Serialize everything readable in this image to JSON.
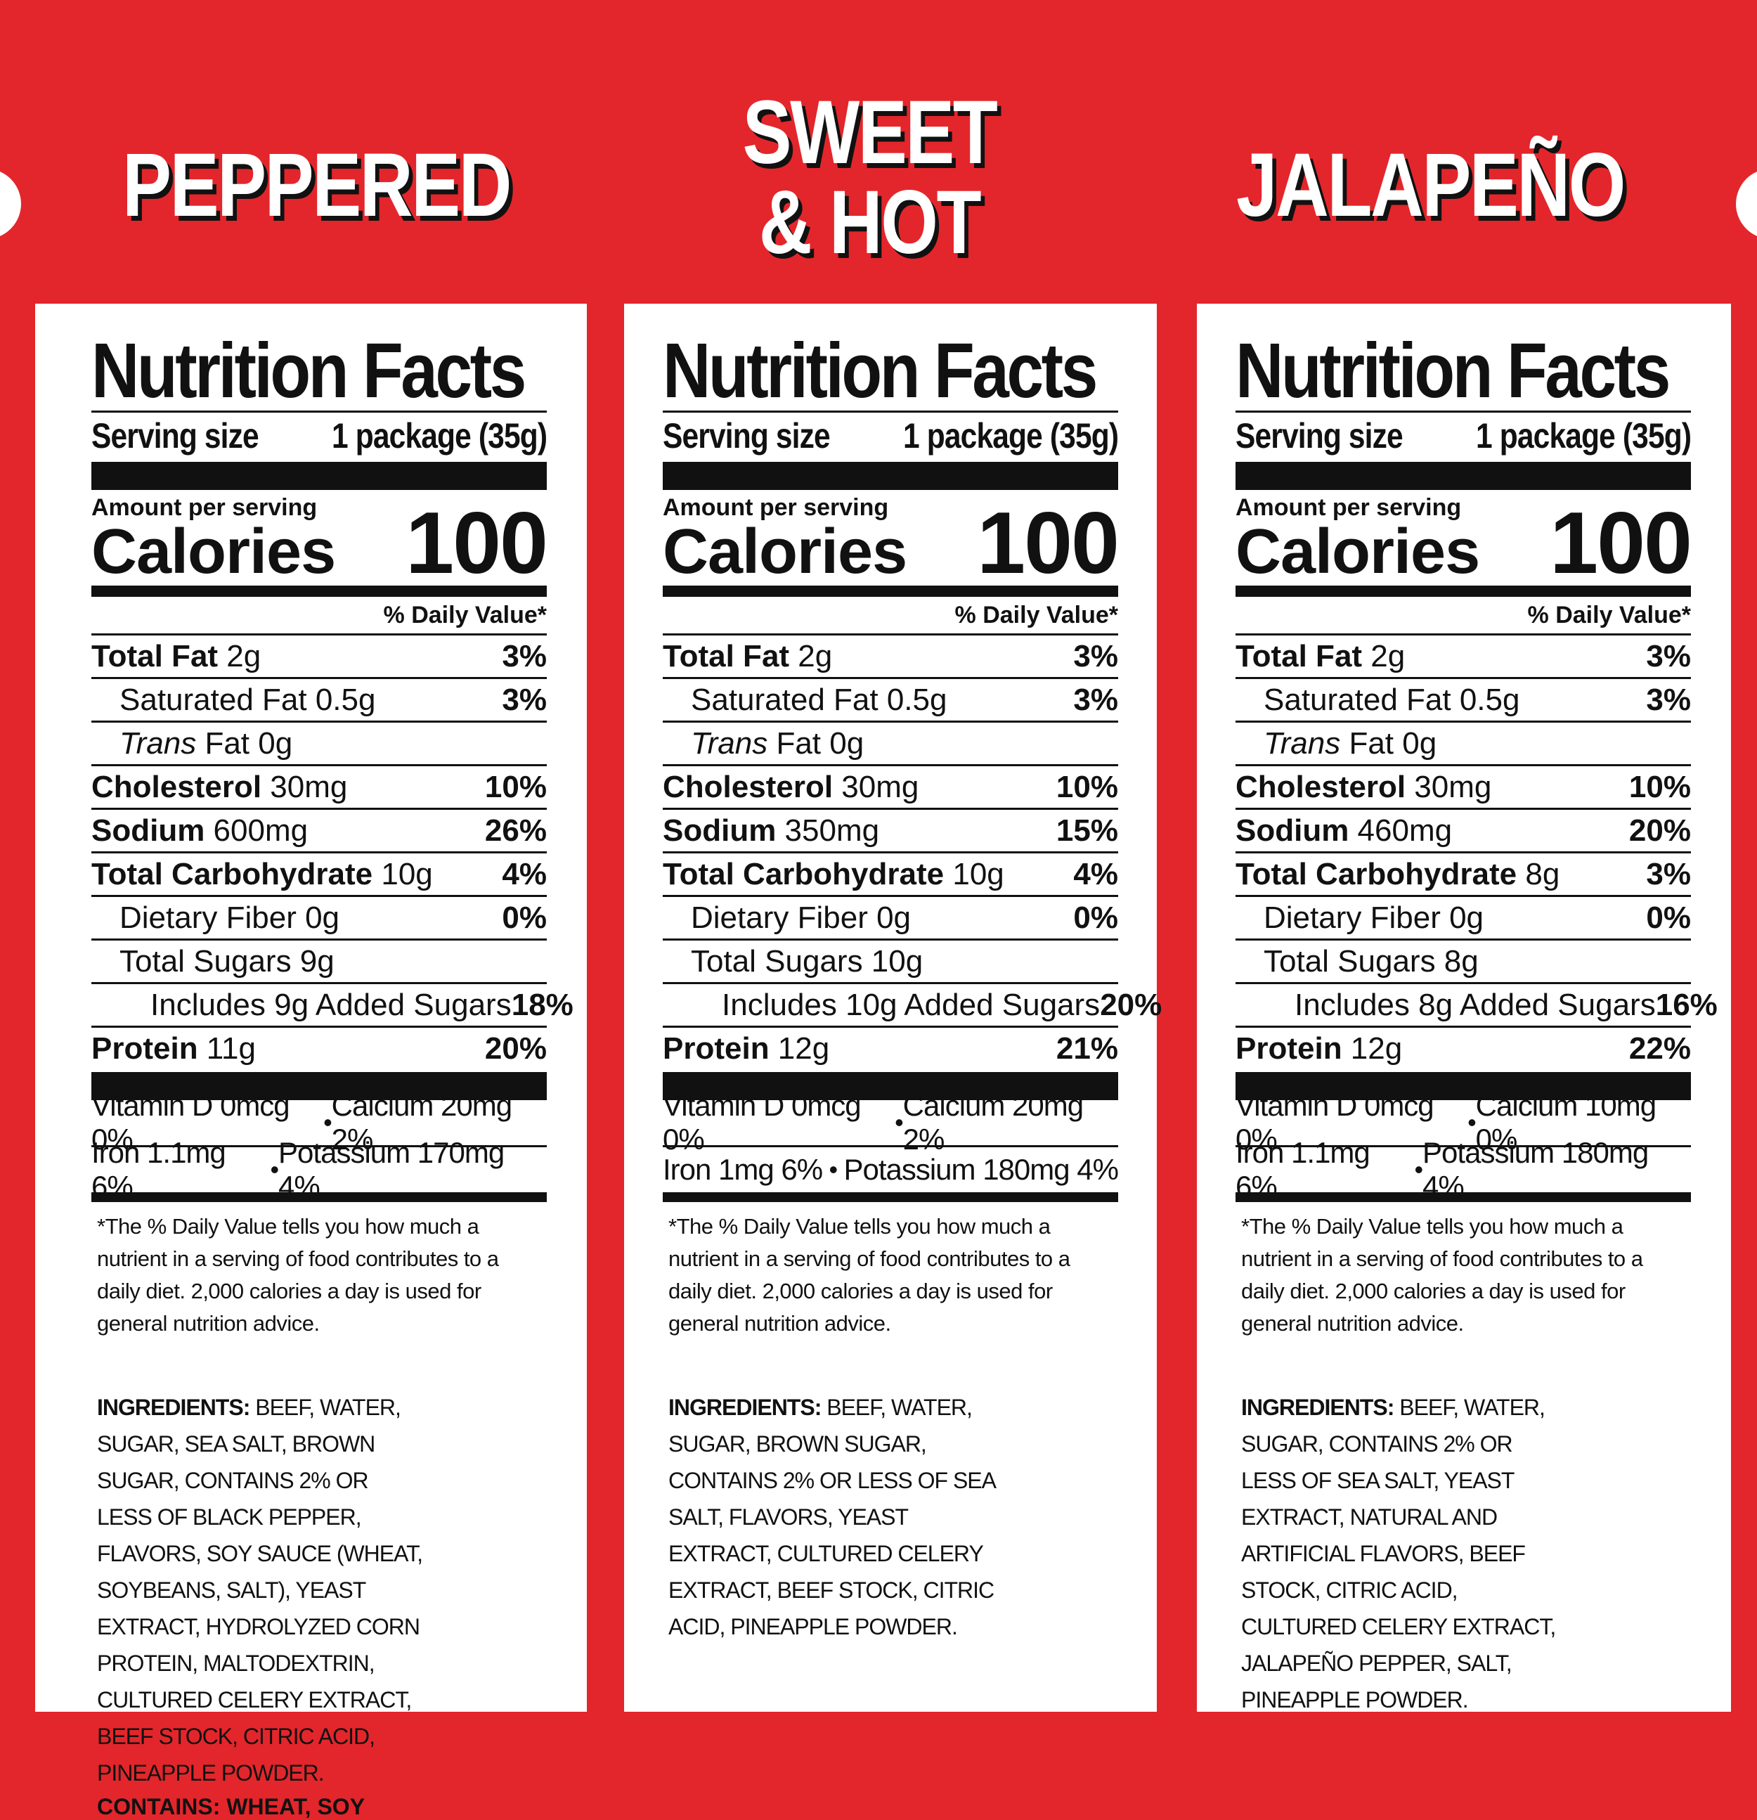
{
  "panels": [
    {
      "flavor": "PEPPERED",
      "flavor_lines": [
        "PEPPERED"
      ],
      "title": "Nutrition Facts",
      "serving_label": "Serving size",
      "serving_value": "1 package (35g)",
      "amount_per_serving": "Amount per serving",
      "calories_label": "Calories",
      "calories": "100",
      "dv_header": "% Daily Value*",
      "nutrients": [
        {
          "bold": "Total Fat",
          "rest": " 2g",
          "pct": "3%",
          "level": 0
        },
        {
          "bold": "",
          "rest": "Saturated Fat 0.5g",
          "pct": "3%",
          "level": 1
        },
        {
          "bold": "",
          "italic": "Trans",
          "rest": " Fat 0g",
          "pct": "",
          "level": 1
        },
        {
          "bold": "Cholesterol",
          "rest": " 30mg",
          "pct": "10%",
          "level": 0
        },
        {
          "bold": "Sodium",
          "rest": " 600mg",
          "pct": "26%",
          "level": 0
        },
        {
          "bold": "Total Carbohydrate",
          "rest": " 10g",
          "pct": "4%",
          "level": 0
        },
        {
          "bold": "",
          "rest": "Dietary Fiber 0g",
          "pct": "0%",
          "level": 1
        },
        {
          "bold": "",
          "rest": "Total Sugars 9g",
          "pct": "",
          "level": 1
        },
        {
          "bold": "",
          "rest": "Includes 9g Added Sugars",
          "pct": "18%",
          "level": 2
        },
        {
          "bold": "Protein",
          "rest": " 11g",
          "pct": "20%",
          "level": 0
        }
      ],
      "vitamins_row1": {
        "left": "Vitamin D 0mcg 0%",
        "right": "Calcium 20mg 2%"
      },
      "vitamins_row2": {
        "left": "Iron 1.1mg 6%",
        "right": "Potassium 170mg 4%"
      },
      "bullet": "•",
      "footnote": "*The % Daily Value tells you how much a nutrient in a serving of food contributes to a daily diet. 2,000 calories a day is used for general nutrition advice.",
      "ingredients_label": "INGREDIENTS:",
      "ingredients": "BEEF, WATER, SUGAR, SEA SALT, BROWN SUGAR, CONTAINS 2% OR LESS OF BLACK PEPPER, FLAVORS, SOY SAUCE (WHEAT, SOYBEANS, SALT), YEAST EXTRACT, HYDROLYZED CORN PROTEIN, MALTODEXTRIN, CULTURED CELERY EXTRACT, BEEF STOCK, CITRIC ACID, PINEAPPLE POWDER.",
      "contains": "CONTAINS: WHEAT, SOY"
    },
    {
      "flavor": "SWEET & HOT",
      "flavor_lines": [
        "SWEET",
        "& HOT"
      ],
      "title": "Nutrition Facts",
      "serving_label": "Serving size",
      "serving_value": "1 package (35g)",
      "amount_per_serving": "Amount per serving",
      "calories_label": "Calories",
      "calories": "100",
      "dv_header": "% Daily Value*",
      "nutrients": [
        {
          "bold": "Total Fat",
          "rest": " 2g",
          "pct": "3%",
          "level": 0
        },
        {
          "bold": "",
          "rest": "Saturated Fat 0.5g",
          "pct": "3%",
          "level": 1
        },
        {
          "bold": "",
          "italic": "Trans",
          "rest": " Fat 0g",
          "pct": "",
          "level": 1
        },
        {
          "bold": "Cholesterol",
          "rest": " 30mg",
          "pct": "10%",
          "level": 0
        },
        {
          "bold": "Sodium",
          "rest": " 350mg",
          "pct": "15%",
          "level": 0
        },
        {
          "bold": "Total Carbohydrate",
          "rest": " 10g",
          "pct": "4%",
          "level": 0
        },
        {
          "bold": "",
          "rest": "Dietary Fiber 0g",
          "pct": "0%",
          "level": 1
        },
        {
          "bold": "",
          "rest": "Total Sugars 10g",
          "pct": "",
          "level": 1
        },
        {
          "bold": "",
          "rest": "Includes 10g Added Sugars",
          "pct": "20%",
          "level": 2
        },
        {
          "bold": "Protein",
          "rest": " 12g",
          "pct": "21%",
          "level": 0
        }
      ],
      "vitamins_row1": {
        "left": "Vitamin D 0mcg 0%",
        "right": "Calcium 20mg 2%"
      },
      "vitamins_row2": {
        "left": "Iron 1mg 6%",
        "right": "Potassium 180mg 4%"
      },
      "bullet": "•",
      "footnote": "*The % Daily Value tells you how much a nutrient in a serving of food contributes to a daily diet. 2,000 calories a day is used for general nutrition advice.",
      "ingredients_label": "INGREDIENTS:",
      "ingredients": "BEEF, WATER, SUGAR, BROWN SUGAR, CONTAINS 2% OR LESS OF SEA SALT, FLAVORS, YEAST EXTRACT, CULTURED CELERY EXTRACT, BEEF STOCK, CITRIC ACID, PINEAPPLE POWDER.",
      "contains": ""
    },
    {
      "flavor": "JALAPEÑO",
      "flavor_lines": [
        "JALAPEÑO"
      ],
      "title": "Nutrition Facts",
      "serving_label": "Serving size",
      "serving_value": "1 package (35g)",
      "amount_per_serving": "Amount per serving",
      "calories_label": "Calories",
      "calories": "100",
      "dv_header": "% Daily Value*",
      "nutrients": [
        {
          "bold": "Total Fat",
          "rest": " 2g",
          "pct": "3%",
          "level": 0
        },
        {
          "bold": "",
          "rest": "Saturated Fat 0.5g",
          "pct": "3%",
          "level": 1
        },
        {
          "bold": "",
          "italic": "Trans",
          "rest": " Fat 0g",
          "pct": "",
          "level": 1
        },
        {
          "bold": "Cholesterol",
          "rest": " 30mg",
          "pct": "10%",
          "level": 0
        },
        {
          "bold": "Sodium",
          "rest": " 460mg",
          "pct": "20%",
          "level": 0
        },
        {
          "bold": "Total Carbohydrate",
          "rest": " 8g",
          "pct": "3%",
          "level": 0
        },
        {
          "bold": "",
          "rest": "Dietary Fiber 0g",
          "pct": "0%",
          "level": 1
        },
        {
          "bold": "",
          "rest": "Total Sugars 8g",
          "pct": "",
          "level": 1
        },
        {
          "bold": "",
          "rest": "Includes 8g Added Sugars",
          "pct": "16%",
          "level": 2
        },
        {
          "bold": "Protein",
          "rest": " 12g",
          "pct": "22%",
          "level": 0
        }
      ],
      "vitamins_row1": {
        "left": "Vitamin D 0mcg 0%",
        "right": "Calcium 10mg 0%"
      },
      "vitamins_row2": {
        "left": "Iron 1.1mg 6%",
        "right": "Potassium 180mg 4%"
      },
      "bullet": "•",
      "footnote": "*The % Daily Value tells you how much a nutrient in a serving of food contributes to a daily diet. 2,000 calories a day is used for general nutrition advice.",
      "ingredients_label": "INGREDIENTS:",
      "ingredients": "BEEF, WATER, SUGAR, CONTAINS 2% OR LESS OF SEA SALT, YEAST EXTRACT, NATURAL AND ARTIFICIAL FLAVORS, BEEF STOCK, CITRIC ACID, CULTURED CELERY EXTRACT, JALAPEÑO PEPPER, SALT, PINEAPPLE POWDER.",
      "contains": ""
    }
  ]
}
